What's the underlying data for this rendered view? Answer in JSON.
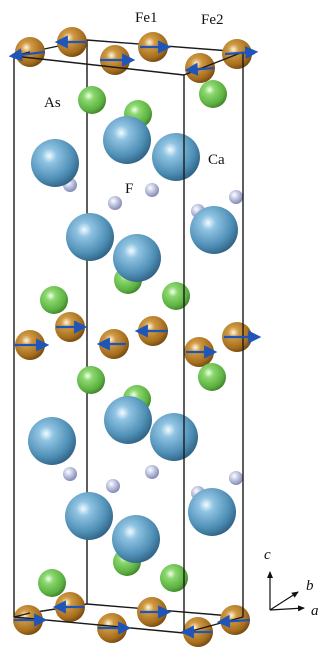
{
  "labels": {
    "fe1": "Fe1",
    "fe2": "Fe2",
    "as": "As",
    "ca": "Ca",
    "f": "F"
  },
  "axes": {
    "c": "c",
    "b": "b",
    "a": "a"
  },
  "colors": {
    "fe": "#a8731e",
    "as": "#6cc04e",
    "ca": "#5b9bbf",
    "f": "#b7bcd8",
    "spin_arrow": "#1f55b8",
    "cell_edge": "#1a1a1a"
  }
}
